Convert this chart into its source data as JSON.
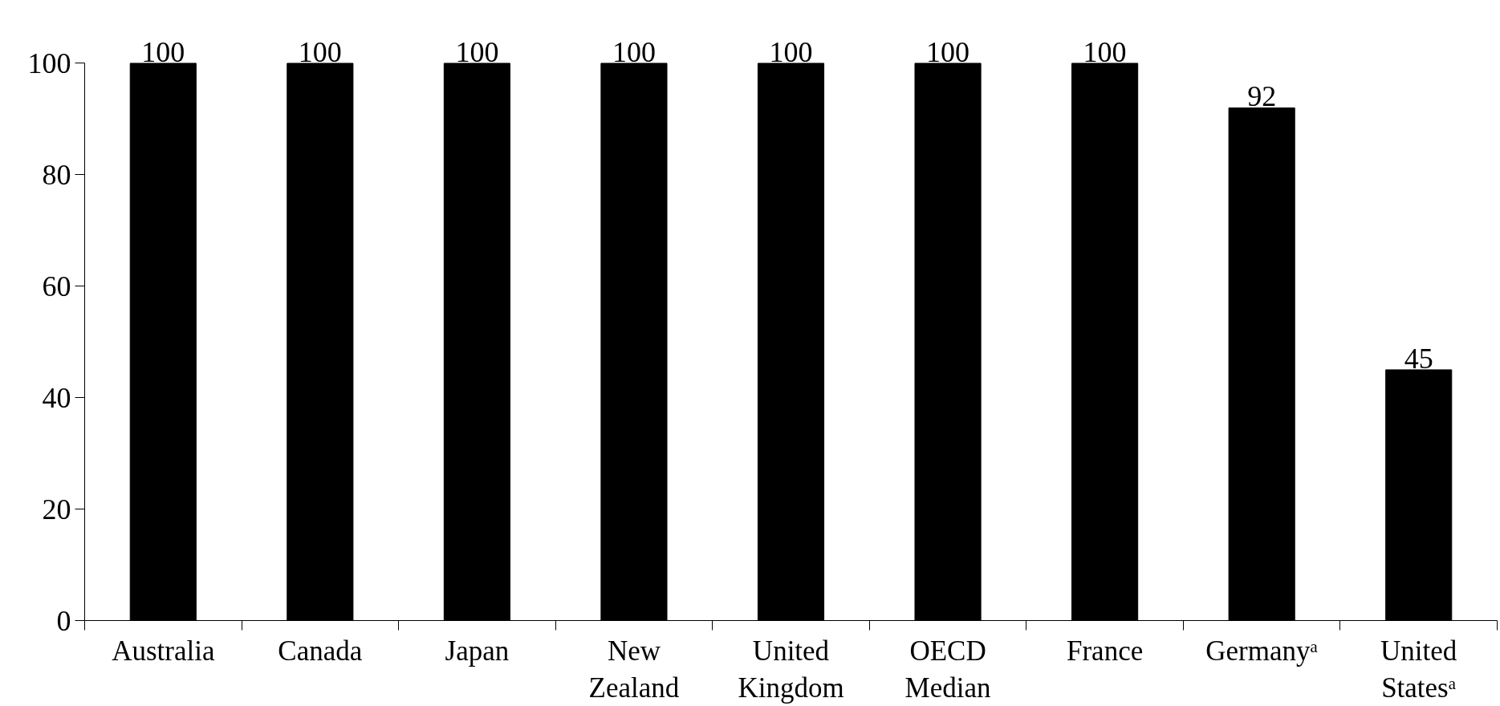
{
  "chart_data": {
    "type": "bar",
    "categories": [
      "Australia",
      "Canada",
      "Japan",
      "New Zealand",
      "United Kingdom",
      "OECD Median",
      "France",
      "Germanyᵃ",
      "United Statesᵃ"
    ],
    "values": [
      100,
      100,
      100,
      100,
      100,
      100,
      100,
      92,
      45
    ],
    "color": "#000000",
    "ylim": [
      0,
      100
    ],
    "yticks": [
      0,
      20,
      40,
      60,
      80,
      100
    ],
    "data_labels": true,
    "grid": false
  }
}
